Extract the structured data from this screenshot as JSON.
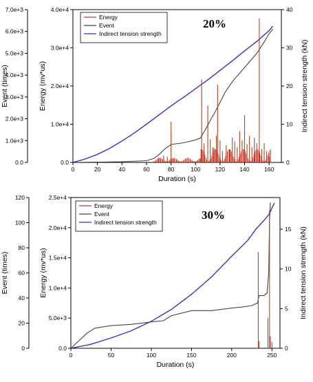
{
  "chart_data": [
    {
      "type": "line",
      "label": "20%",
      "xlabel": "Duration (s)",
      "xlim": [
        0,
        170
      ],
      "x_ticks": [
        "0",
        "20",
        "40",
        "60",
        "80",
        "100",
        "120",
        "140",
        "160"
      ],
      "y_event_label": "Event (times)",
      "y_event_lim": [
        0,
        7000
      ],
      "y_event_ticks": [
        "0.0",
        "1.0e+3",
        "2.0e+3",
        "3.0e+3",
        "4.0e+3",
        "5.0e+3",
        "6.0e+3",
        "7.0e+3"
      ],
      "y_energy_label": "Energy (mv*us)",
      "y_energy_lim": [
        0,
        40000
      ],
      "y_energy_ticks": [
        "0.0",
        "1.0e+4",
        "2.0e+4",
        "3.0e+4",
        "4.0e+4"
      ],
      "y_force_label": "Indirect tension strength (kN)",
      "y_force_lim": [
        0,
        40
      ],
      "y_force_ticks": [
        "0",
        "10",
        "20",
        "30",
        "40"
      ],
      "legend": [
        "Energy",
        "Event",
        "Indirect tension strength"
      ],
      "legend_position": "top-left",
      "series": [
        {
          "name": "Indirect tension strength",
          "axis": "force",
          "color": "#3a2fc8",
          "x": [
            0,
            10,
            20,
            30,
            40,
            50,
            60,
            70,
            80,
            90,
            100,
            110,
            120,
            130,
            140,
            150,
            155,
            160,
            163
          ],
          "y": [
            0,
            0.9,
            2.1,
            3.7,
            5.6,
            7.7,
            10.0,
            12.4,
            14.8,
            17.0,
            19.3,
            21.6,
            24.1,
            26.6,
            29.2,
            31.7,
            33.1,
            34.5,
            35.7
          ]
        },
        {
          "name": "Event",
          "axis": "event",
          "color": "#444444",
          "x": [
            0,
            20,
            40,
            60,
            66,
            70,
            75,
            80,
            90,
            100,
            104,
            108,
            112,
            116,
            120,
            124,
            130,
            140,
            150,
            156,
            160,
            163
          ],
          "y": [
            0,
            15,
            30,
            80,
            180,
            350,
            620,
            820,
            900,
            1030,
            1120,
            1500,
            1920,
            2320,
            2750,
            3200,
            3700,
            4350,
            5000,
            5520,
            5900,
            6100
          ]
        },
        {
          "name": "Energy",
          "axis": "energy",
          "color": "#b3441f",
          "spikes": [
            [
              70,
              1200
            ],
            [
              74,
              1800
            ],
            [
              77,
              1500
            ],
            [
              80,
              10600
            ],
            [
              82,
              900
            ],
            [
              104,
              1000
            ],
            [
              105,
              21700
            ],
            [
              106,
              3000
            ],
            [
              107,
              5000
            ],
            [
              110,
              14900
            ],
            [
              112,
              6000
            ],
            [
              114,
              4000
            ],
            [
              115,
              3800
            ],
            [
              117,
              7000
            ],
            [
              118,
              20400
            ],
            [
              120,
              5800
            ],
            [
              122,
              3000
            ],
            [
              125,
              4500
            ],
            [
              128,
              3400
            ],
            [
              130,
              6500
            ],
            [
              132,
              5500
            ],
            [
              134,
              4000
            ],
            [
              136,
              8200
            ],
            [
              138,
              5800
            ],
            [
              140,
              12400
            ],
            [
              142,
              4800
            ],
            [
              144,
              7000
            ],
            [
              146,
              4000
            ],
            [
              148,
              6500
            ],
            [
              150,
              5000
            ],
            [
              152,
              37700
            ],
            [
              154,
              3500
            ],
            [
              156,
              5000
            ],
            [
              158,
              3000
            ],
            [
              160,
              1500
            ]
          ]
        }
      ]
    },
    {
      "type": "line",
      "label": "30%",
      "xlabel": "Duration (s)",
      "xlim": [
        0,
        260
      ],
      "x_ticks": [
        "0",
        "50",
        "100",
        "150",
        "200",
        "250"
      ],
      "y_event_label": "Event (times)",
      "y_event_lim": [
        0,
        120
      ],
      "y_event_ticks": [
        "0",
        "20",
        "40",
        "60",
        "80",
        "100",
        "120"
      ],
      "y_energy_label": "Energy (mv*us)",
      "y_energy_lim": [
        0,
        25000
      ],
      "y_energy_ticks": [
        "0.0",
        "5.0e+3",
        "1.0e+4",
        "1.5e+4",
        "2.0e+4",
        "2.5e+4"
      ],
      "y_force_label": "Indirect tension strength (kN)",
      "y_force_lim": [
        0,
        19
      ],
      "y_force_ticks": [
        "0",
        "5",
        "10",
        "15"
      ],
      "legend": [
        "Energy",
        "Event",
        "Indirect tension strength"
      ],
      "legend_position": "top-left",
      "series": [
        {
          "name": "Indirect tension strength",
          "axis": "force",
          "color": "#3a2fc8",
          "x": [
            0,
            25,
            50,
            75,
            100,
            125,
            150,
            175,
            200,
            220,
            230,
            240,
            245,
            248,
            250,
            253
          ],
          "y": [
            0,
            0.5,
            1.3,
            2.2,
            3.4,
            4.9,
            6.8,
            9.0,
            11.6,
            13.6,
            15.0,
            16.1,
            16.7,
            17.2,
            17.7,
            18.3
          ]
        },
        {
          "name": "Event",
          "axis": "event",
          "color": "#444444",
          "x": [
            0,
            10,
            20,
            30,
            50,
            75,
            100,
            115,
            125,
            150,
            175,
            200,
            215,
            225,
            232,
            234,
            240,
            244,
            246,
            247,
            248
          ],
          "y": [
            0,
            6,
            12,
            16,
            18,
            19,
            21,
            22,
            26,
            30,
            30,
            32,
            33,
            34,
            36,
            42,
            42,
            44,
            60,
            100,
            116
          ]
        },
        {
          "name": "Energy",
          "axis": "energy",
          "color": "#b3441f",
          "spikes": [
            [
              233,
              16000
            ],
            [
              234,
              1200
            ],
            [
              245,
              5000
            ],
            [
              247,
              22900
            ],
            [
              248,
              2000
            ],
            [
              250,
              1000
            ]
          ]
        }
      ]
    }
  ]
}
